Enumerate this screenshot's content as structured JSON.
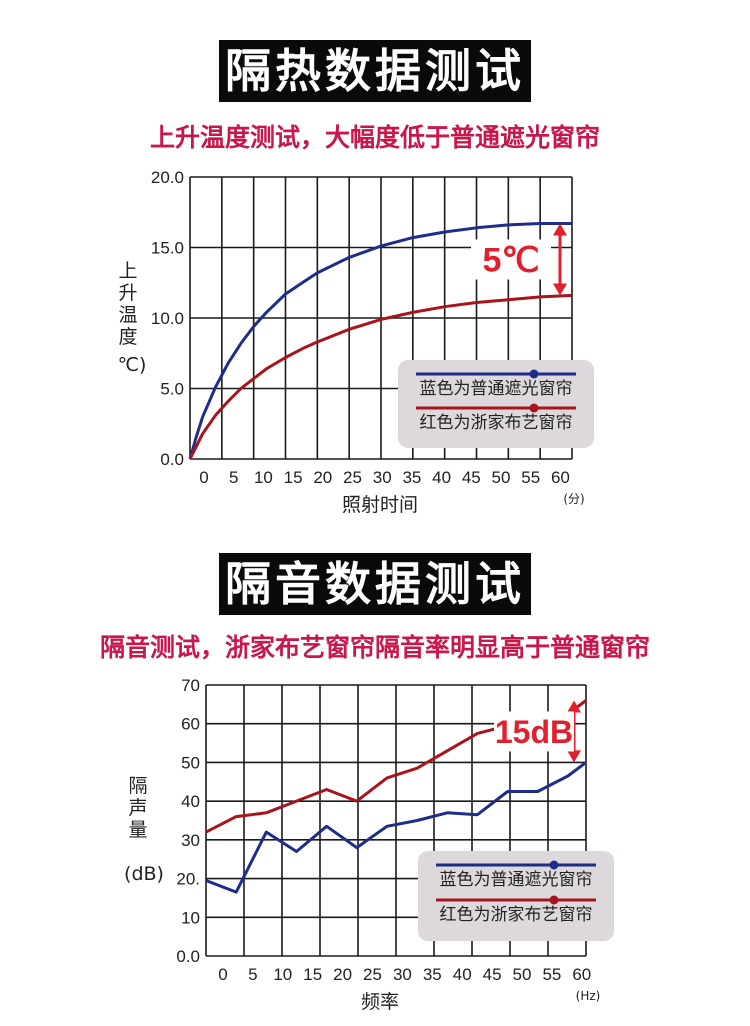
{
  "chart_data": [
    {
      "type": "line",
      "title": "隔热数据测试",
      "subtitle": "上升温度测试，大幅度低于普通遮光窗帘",
      "ylabel_chars": [
        "上",
        "升",
        "温",
        "度"
      ],
      "ylabel_unit": "℃)",
      "xlabel": "照射时间",
      "x_unit": "(分)",
      "x_ticks": [
        "0",
        "5",
        "10",
        "15",
        "20",
        "25",
        "30",
        "35",
        "40",
        "45",
        "50",
        "55",
        "60"
      ],
      "y_ticks": [
        "0.0",
        "5.0",
        "10.0",
        "15.0",
        "20.0"
      ],
      "xlim": [
        0,
        60
      ],
      "ylim": [
        0,
        20
      ],
      "grid": true,
      "legend_position": "lower-right",
      "annotation": "5℃",
      "series": [
        {
          "name": "蓝色为普通遮光窗帘",
          "color": "#1f2d8a",
          "x": [
            0,
            1,
            2,
            4,
            6,
            8,
            10,
            12,
            15,
            18,
            20,
            25,
            30,
            35,
            40,
            45,
            50,
            55,
            60
          ],
          "values": [
            0,
            1.6,
            3.0,
            5.1,
            6.8,
            8.2,
            9.4,
            10.4,
            11.7,
            12.6,
            13.2,
            14.3,
            15.1,
            15.7,
            16.1,
            16.4,
            16.6,
            16.7,
            16.7
          ]
        },
        {
          "name": "红色为浙家布艺窗帘",
          "color": "#a8141c",
          "x": [
            0,
            1,
            2,
            4,
            6,
            8,
            10,
            12,
            15,
            18,
            20,
            25,
            30,
            35,
            40,
            45,
            50,
            55,
            60
          ],
          "values": [
            0,
            0.9,
            1.8,
            3.1,
            4.1,
            5.0,
            5.7,
            6.4,
            7.2,
            7.9,
            8.3,
            9.2,
            9.9,
            10.4,
            10.8,
            11.1,
            11.3,
            11.5,
            11.6
          ]
        }
      ]
    },
    {
      "type": "line",
      "title": "隔音数据测试",
      "subtitle": "隔音测试，浙家布艺窗帘隔音率明显高于普通窗帘",
      "ylabel_chars": [
        "隔",
        "声",
        "量"
      ],
      "ylabel_unit": "(dB)",
      "xlabel": "频率",
      "x_unit": "(Hz)",
      "x_ticks": [
        "0",
        "5",
        "10",
        "15",
        "20",
        "25",
        "30",
        "35",
        "40",
        "45",
        "50",
        "55",
        "60"
      ],
      "y_ticks": [
        "0.0",
        "10",
        "20.",
        "30",
        "40",
        "50",
        "60",
        "70"
      ],
      "xlim": [
        -3,
        60
      ],
      "ylim": [
        0,
        70
      ],
      "grid": true,
      "legend_position": "lower-right",
      "annotation": "15dB",
      "series": [
        {
          "name": "蓝色为普通遮光窗帘",
          "color": "#1f2d8a",
          "x": [
            -3,
            2,
            7,
            12,
            17,
            22,
            27,
            32,
            37,
            42,
            47,
            52,
            57,
            60
          ],
          "values": [
            19.5,
            16.5,
            32,
            27,
            33.5,
            28,
            33.5,
            35,
            37,
            36.5,
            42.5,
            42.5,
            46.5,
            50
          ]
        },
        {
          "name": "红色为浙家布艺窗帘",
          "color": "#a8141c",
          "x": [
            -3,
            2,
            7,
            12,
            17,
            22,
            27,
            32,
            37,
            42,
            47,
            52,
            57,
            60
          ],
          "values": [
            32,
            36,
            37,
            40,
            43,
            40,
            46,
            48.5,
            53,
            57.5,
            59.5,
            62,
            62.5,
            66
          ]
        }
      ]
    }
  ]
}
